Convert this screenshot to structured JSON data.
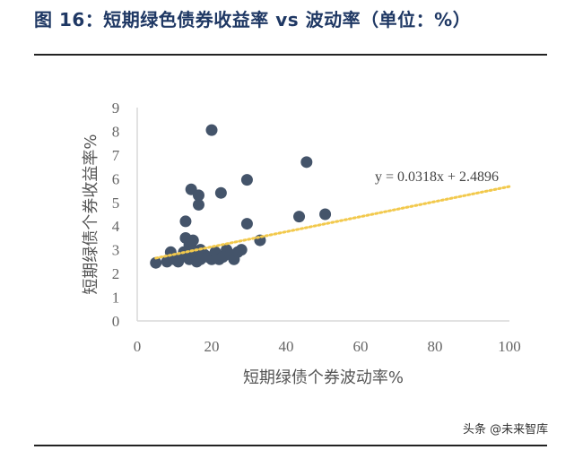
{
  "title": "图 16：短期绿色债券收益率 vs 波动率（单位：%）",
  "watermark": "头条 @未来智库",
  "colors": {
    "title": "#1f3864",
    "points": "#44546a",
    "trendline": "#f2c94c",
    "axis": "#d9d9d9"
  },
  "chart_data": {
    "type": "scatter",
    "xlabel": "短期绿债个券波动率%",
    "ylabel": "短期绿债个券收益率%",
    "xlim": [
      0,
      100
    ],
    "ylim": [
      0,
      9
    ],
    "xticks": [
      "0",
      "20",
      "40",
      "60",
      "80",
      "100"
    ],
    "yticks": [
      "0",
      "1",
      "2",
      "3",
      "4",
      "5",
      "6",
      "7",
      "8",
      "9"
    ],
    "trendline": {
      "equation": "y = 0.0318x + 2.4896",
      "slope": 0.0318,
      "intercept": 2.4896
    },
    "points": [
      {
        "x": 5,
        "y": 2.45
      },
      {
        "x": 8,
        "y": 2.5
      },
      {
        "x": 9,
        "y": 2.9
      },
      {
        "x": 10,
        "y": 2.6
      },
      {
        "x": 11,
        "y": 2.5
      },
      {
        "x": 12,
        "y": 2.7
      },
      {
        "x": 12.5,
        "y": 2.9
      },
      {
        "x": 13,
        "y": 4.2
      },
      {
        "x": 13,
        "y": 3.5
      },
      {
        "x": 13.5,
        "y": 2.8
      },
      {
        "x": 14,
        "y": 3.2
      },
      {
        "x": 14,
        "y": 2.6
      },
      {
        "x": 14.5,
        "y": 5.55
      },
      {
        "x": 15,
        "y": 3.4
      },
      {
        "x": 15,
        "y": 3.0
      },
      {
        "x": 15.5,
        "y": 2.7
      },
      {
        "x": 16,
        "y": 2.5
      },
      {
        "x": 16.5,
        "y": 5.3
      },
      {
        "x": 16.5,
        "y": 4.9
      },
      {
        "x": 17,
        "y": 3.0
      },
      {
        "x": 17,
        "y": 2.6
      },
      {
        "x": 18,
        "y": 2.8
      },
      {
        "x": 19,
        "y": 2.7
      },
      {
        "x": 20,
        "y": 8.05
      },
      {
        "x": 20,
        "y": 2.6
      },
      {
        "x": 21,
        "y": 2.9
      },
      {
        "x": 22,
        "y": 2.6
      },
      {
        "x": 22.5,
        "y": 5.4
      },
      {
        "x": 23,
        "y": 2.7
      },
      {
        "x": 24,
        "y": 3.0
      },
      {
        "x": 25,
        "y": 2.8
      },
      {
        "x": 26,
        "y": 2.6
      },
      {
        "x": 27,
        "y": 2.9
      },
      {
        "x": 28,
        "y": 3.0
      },
      {
        "x": 29.5,
        "y": 5.95
      },
      {
        "x": 29.5,
        "y": 4.1
      },
      {
        "x": 33,
        "y": 3.4
      },
      {
        "x": 43.5,
        "y": 4.4
      },
      {
        "x": 45.5,
        "y": 6.7
      },
      {
        "x": 50.5,
        "y": 4.5
      }
    ]
  }
}
